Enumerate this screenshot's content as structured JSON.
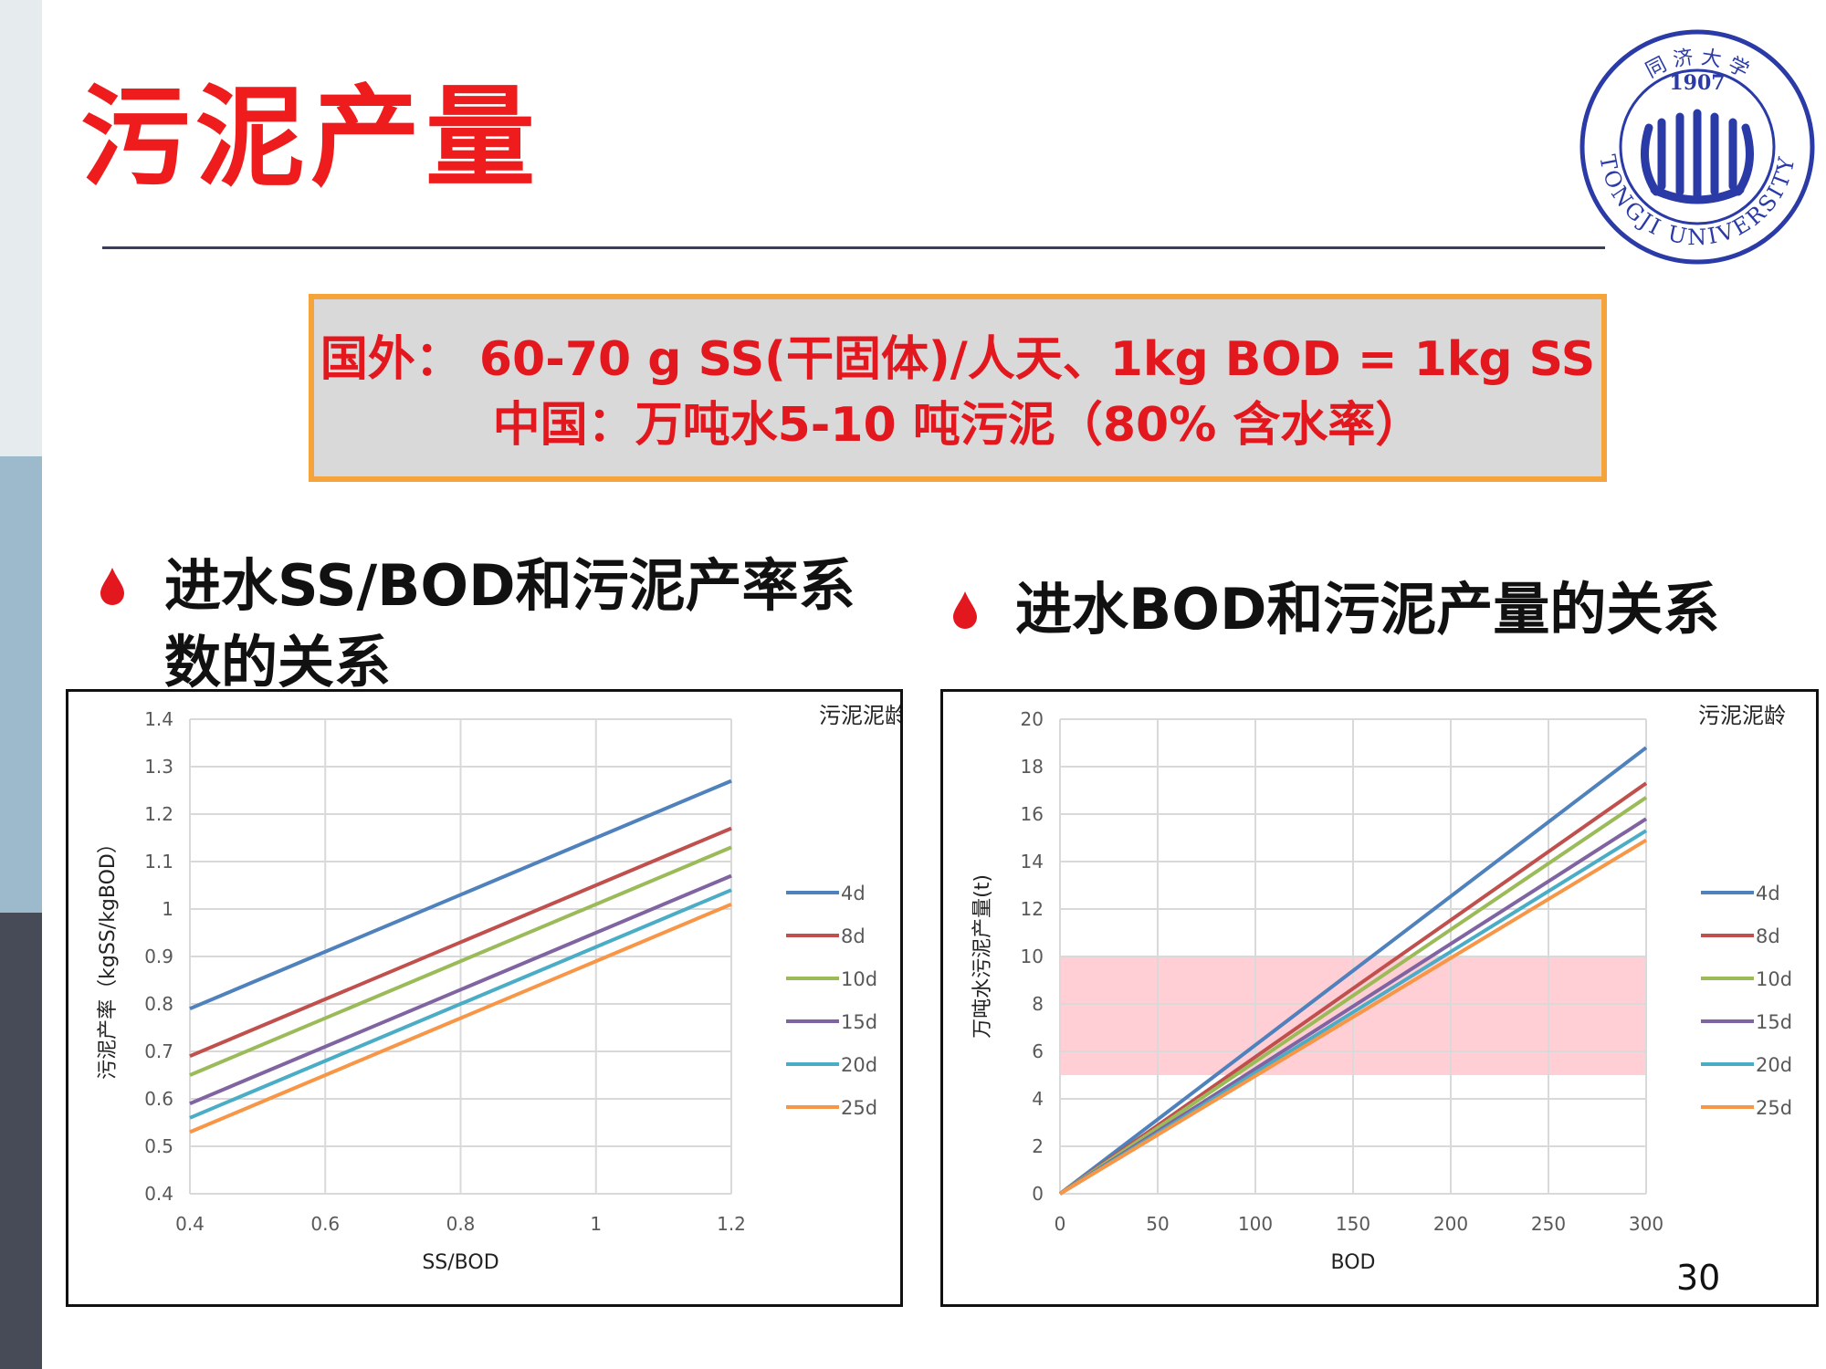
{
  "slide": {
    "title": "污泥产量",
    "page_number": "30"
  },
  "logo": {
    "text_top": "同 济 大 学",
    "year": "1907",
    "text_bottom": "TONGJI UNIVERSITY"
  },
  "callout": {
    "line1": "国外： 60-70 g SS(干固体)/人天、1kg BOD = 1kg SS",
    "line2": "中国：万吨水5-10 吨污泥（80% 含水率）"
  },
  "bullets": [
    {
      "text_line1": "进水SS/BOD和污泥产率系",
      "text_line2": "数的关系"
    },
    {
      "text_line1": "进水BOD和污泥产量的关系"
    }
  ],
  "colors": {
    "accent_red": "#ee1c1c",
    "callout_border": "#f5a43c",
    "callout_fill": "#d9d9d9",
    "highlight_band": "#ffc7ce",
    "series": {
      "4d": "#4f81bd",
      "8d": "#c0504d",
      "10d": "#9bbb59",
      "15d": "#8064a2",
      "20d": "#4bacc6",
      "25d": "#f79646"
    }
  },
  "chart_data": [
    {
      "type": "line",
      "xlabel": "SS/BOD",
      "ylabel": "污泥产率（kgSS/kgBOD）",
      "legend_title": "污泥泥龄",
      "legend_position": "right",
      "xlim": [
        0.4,
        1.2
      ],
      "ylim": [
        0.4,
        1.4
      ],
      "x_ticks": [
        "0.4",
        "0.6",
        "0.8",
        "1",
        "1.2"
      ],
      "y_ticks": [
        "0.4",
        "0.5",
        "0.6",
        "0.7",
        "0.8",
        "0.9",
        "1",
        "1.1",
        "1.2",
        "1.3",
        "1.4"
      ],
      "grid": true,
      "x": [
        0.4,
        1.2
      ],
      "series": [
        {
          "name": "4d",
          "values": [
            0.79,
            1.27
          ]
        },
        {
          "name": "8d",
          "values": [
            0.69,
            1.17
          ]
        },
        {
          "name": "10d",
          "values": [
            0.65,
            1.13
          ]
        },
        {
          "name": "15d",
          "values": [
            0.59,
            1.07
          ]
        },
        {
          "name": "20d",
          "values": [
            0.56,
            1.04
          ]
        },
        {
          "name": "25d",
          "values": [
            0.53,
            1.01
          ]
        }
      ]
    },
    {
      "type": "line",
      "xlabel": "BOD",
      "ylabel": "万吨水污泥产量(t)",
      "legend_title": "污泥泥龄",
      "legend_position": "right",
      "xlim": [
        0,
        300
      ],
      "ylim": [
        0,
        20
      ],
      "x_ticks": [
        "0",
        "50",
        "100",
        "150",
        "200",
        "250",
        "300"
      ],
      "y_ticks": [
        "0",
        "2",
        "4",
        "6",
        "8",
        "10",
        "12",
        "14",
        "16",
        "18",
        "20"
      ],
      "grid": true,
      "highlight_band": {
        "y_from": 5,
        "y_to": 10,
        "x_from": 0,
        "x_to": 300
      },
      "x": [
        0,
        300
      ],
      "series": [
        {
          "name": "4d",
          "values": [
            0,
            18.8
          ]
        },
        {
          "name": "8d",
          "values": [
            0,
            17.3
          ]
        },
        {
          "name": "10d",
          "values": [
            0,
            16.7
          ]
        },
        {
          "name": "15d",
          "values": [
            0,
            15.8
          ]
        },
        {
          "name": "20d",
          "values": [
            0,
            15.3
          ]
        },
        {
          "name": "25d",
          "values": [
            0,
            14.9
          ]
        }
      ]
    }
  ]
}
